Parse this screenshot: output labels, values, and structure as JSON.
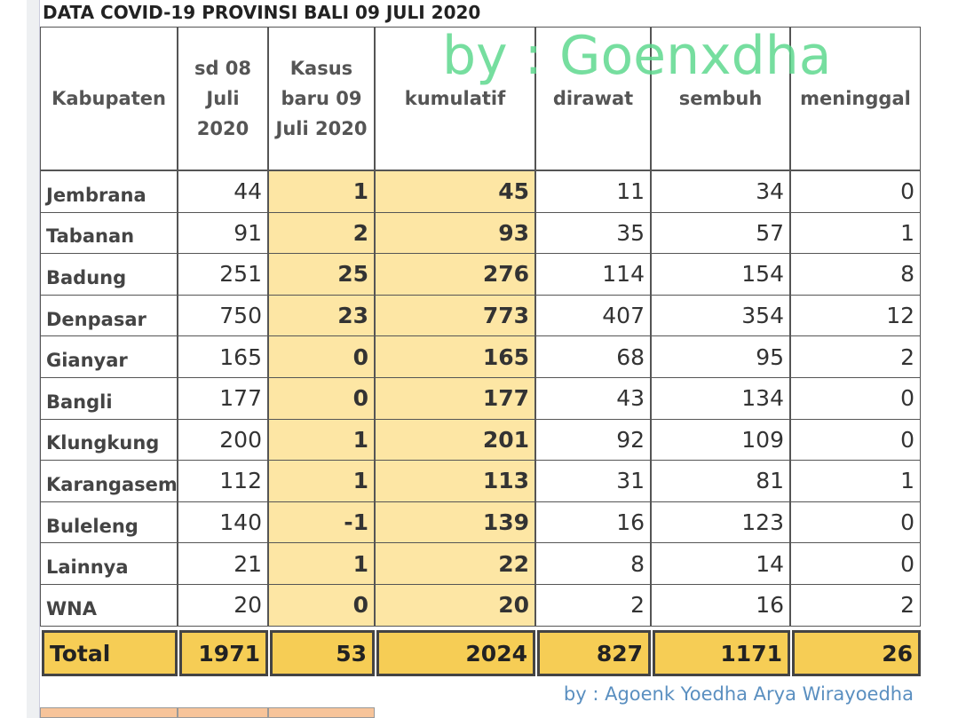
{
  "title": "DATA COVID-19 PROVINSI BALI 09 JULI 2020",
  "watermark": "by : Goenxdha",
  "table": {
    "headers": [
      "Kabupaten",
      "sd 08\nJuli\n2020",
      "Kasus\nbaru 09\nJuli 2020",
      "kumulatif",
      "dirawat",
      "sembuh",
      "meninggal"
    ],
    "rows": [
      [
        "Jembrana",
        44,
        1,
        45,
        11,
        34,
        0
      ],
      [
        "Tabanan",
        91,
        2,
        93,
        35,
        57,
        1
      ],
      [
        "Badung",
        251,
        25,
        276,
        114,
        154,
        8
      ],
      [
        "Denpasar",
        750,
        23,
        773,
        407,
        354,
        12
      ],
      [
        "Gianyar",
        165,
        0,
        165,
        68,
        95,
        2
      ],
      [
        "Bangli",
        177,
        0,
        177,
        43,
        134,
        0
      ],
      [
        "Klungkung",
        200,
        1,
        201,
        92,
        109,
        0
      ],
      [
        "Karangasem",
        112,
        1,
        113,
        31,
        81,
        1
      ],
      [
        "Buleleng",
        140,
        -1,
        139,
        16,
        123,
        0
      ],
      [
        "Lainnya",
        21,
        1,
        22,
        8,
        14,
        0
      ],
      [
        "WNA",
        20,
        0,
        20,
        2,
        16,
        2
      ]
    ],
    "total": [
      "Total",
      1971,
      53,
      2024,
      827,
      1171,
      26
    ]
  },
  "credit": "by : Agoenk Yoedha Arya Wirayoedha"
}
